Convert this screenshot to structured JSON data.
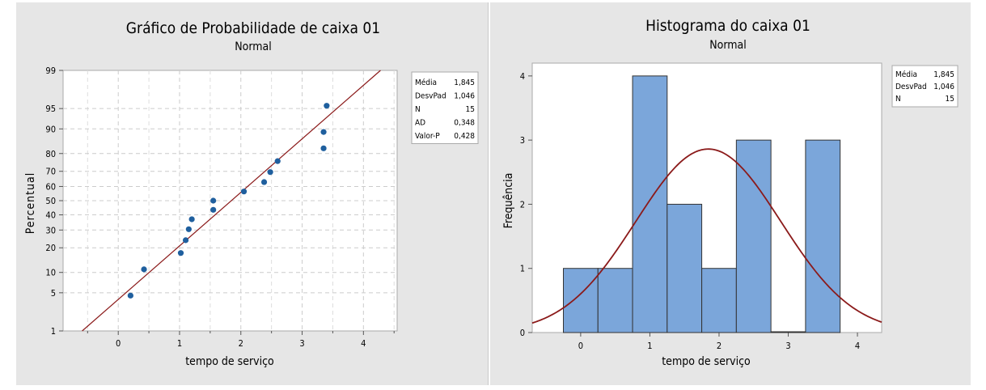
{
  "chart_data": [
    {
      "type": "scatter",
      "title": "Gráfico de Probabilidade de caixa 01",
      "subtitle": "Normal",
      "xlabel": "tempo de serviço",
      "ylabel": "Percentual",
      "xlim": [
        -0.9,
        4.55
      ],
      "x_ticks": [
        "0",
        "1",
        "2",
        "3",
        "4"
      ],
      "y_ticks": [
        "1",
        "5",
        "10",
        "20",
        "30",
        "40",
        "50",
        "60",
        "70",
        "80",
        "90",
        "95",
        "99"
      ],
      "y_scale": "normal-probability",
      "grid": true,
      "fit_line": {
        "mean": 1.845,
        "sd": 1.046,
        "color": "#8b1a1a"
      },
      "points": [
        {
          "x": 0.2,
          "y": 4.5
        },
        {
          "x": 0.42,
          "y": 11
        },
        {
          "x": 1.02,
          "y": 17.5
        },
        {
          "x": 1.1,
          "y": 24
        },
        {
          "x": 1.15,
          "y": 30.5
        },
        {
          "x": 1.2,
          "y": 37
        },
        {
          "x": 1.55,
          "y": 43.5
        },
        {
          "x": 1.55,
          "y": 50
        },
        {
          "x": 2.05,
          "y": 56.5
        },
        {
          "x": 2.38,
          "y": 63
        },
        {
          "x": 2.48,
          "y": 69.5
        },
        {
          "x": 2.6,
          "y": 76
        },
        {
          "x": 3.35,
          "y": 82.5
        },
        {
          "x": 3.35,
          "y": 89
        },
        {
          "x": 3.4,
          "y": 95.5
        }
      ],
      "point_color": "#1f5f9e",
      "stats_box": [
        {
          "label": "Média",
          "value": "1,845"
        },
        {
          "label": "DesvPad",
          "value": "1,046"
        },
        {
          "label": "N",
          "value": "15"
        },
        {
          "label": "AD",
          "value": "0,348"
        },
        {
          "label": "Valor-P",
          "value": "0,428"
        }
      ],
      "legend_position": "right"
    },
    {
      "type": "bar",
      "title": "Histograma do caixa 01",
      "subtitle": "Normal",
      "xlabel": "tempo de serviço",
      "ylabel": "Frequência",
      "xlim": [
        -0.7,
        4.35
      ],
      "ylim": [
        0,
        4.2
      ],
      "x_ticks": [
        "0",
        "1",
        "2",
        "3",
        "4"
      ],
      "y_ticks": [
        "0",
        "1",
        "2",
        "3",
        "4"
      ],
      "bin_width": 0.5,
      "bins": [
        {
          "x": 0.0,
          "count": 1
        },
        {
          "x": 0.5,
          "count": 1
        },
        {
          "x": 1.0,
          "count": 4
        },
        {
          "x": 1.5,
          "count": 2
        },
        {
          "x": 2.0,
          "count": 1
        },
        {
          "x": 2.5,
          "count": 3
        },
        {
          "x": 3.0,
          "count": 0
        },
        {
          "x": 3.5,
          "count": 3
        }
      ],
      "bar_color": "#7ba6da",
      "curve": {
        "mean": 1.845,
        "sd": 1.046,
        "n": 15,
        "color": "#8b1a1a"
      },
      "stats_box": [
        {
          "label": "Média",
          "value": "1,845"
        },
        {
          "label": "DesvPad",
          "value": "1,046"
        },
        {
          "label": "N",
          "value": "15"
        }
      ],
      "legend_position": "right"
    }
  ]
}
